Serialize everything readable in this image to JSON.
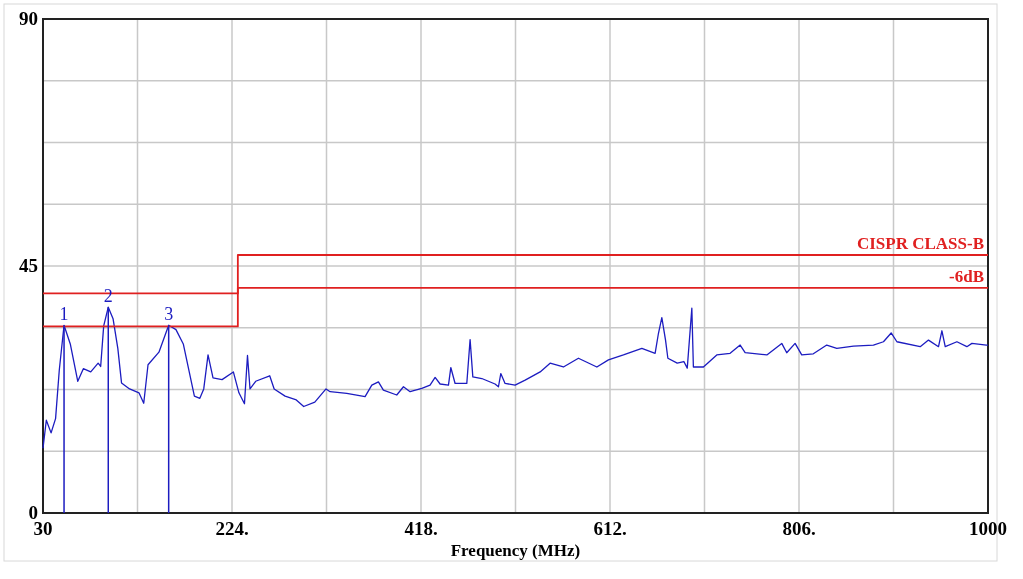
{
  "chart_data": {
    "type": "line",
    "xlabel": "Frequency (MHz)",
    "xlim": [
      30,
      1000
    ],
    "ylim": [
      0,
      90
    ],
    "xticks": [
      30,
      {
        "value": 127,
        "label": null
      },
      {
        "value": 224,
        "label": "224."
      },
      {
        "value": 321,
        "label": null
      },
      {
        "value": 418,
        "label": "418."
      },
      {
        "value": 515,
        "label": null
      },
      {
        "value": 612,
        "label": "612."
      },
      {
        "value": 709,
        "label": null
      },
      {
        "value": 806,
        "label": "806."
      },
      {
        "value": 903,
        "label": null
      },
      1000
    ],
    "yticks": [
      0,
      {
        "value": 11.25,
        "label": null
      },
      {
        "value": 22.5,
        "label": null
      },
      {
        "value": 33.75,
        "label": null
      },
      45,
      {
        "value": 56.25,
        "label": null
      },
      {
        "value": 67.5,
        "label": null
      },
      {
        "value": 78.75,
        "label": null
      },
      90
    ],
    "grid": true,
    "series": [
      {
        "color": "#1c1cc0",
        "x": [
          30,
          33.4,
          38.3,
          42.9,
          46.7,
          51.6,
          58,
          65.7,
          71.4,
          79,
          86.6,
          89.2,
          92.3,
          97,
          101.9,
          106.8,
          110.6,
          118.9,
          128.5,
          133.4,
          137.8,
          149,
          159,
          166.5,
          174,
          185.4,
          191,
          195,
          199.4,
          204.5,
          213.8,
          225.4,
          231.1,
          236.8,
          239.9,
          242.5,
          248.3,
          262.7,
          267.3,
          278.5,
          290,
          297.6,
          309,
          320.5,
          324.7,
          341.8,
          360.6,
          367.5,
          374.3,
          379.4,
          393.1,
          400,
          406.8,
          418.8,
          427.3,
          432.5,
          437.6,
          446.2,
          448.6,
          453,
          465,
          468.4,
          471.2,
          480.4,
          494,
          497.5,
          499.9,
          504.3,
          514.6,
          524.9,
          540.3,
          550.5,
          564.2,
          579.6,
          598.5,
          610.4,
          625.8,
          644.7,
          658.3,
          661.7,
          665.2,
          669,
          671.4,
          681,
          687.8,
          691.3,
          696,
          697.6,
          707.9,
          721.6,
          735.3,
          745.6,
          750.7,
          773,
          788.3,
          793.4,
          802,
          808.8,
          820.7,
          834.5,
          844.8,
          861.9,
          882.4,
          892.7,
          900.6,
          906.5,
          930.4,
          938.9,
          949.2,
          952.7,
          956.1,
          968.1,
          978.3,
          983.5,
          998.3,
          1000
        ],
        "values": [
          11.8,
          16.9,
          14.6,
          17.2,
          26,
          34.2,
          30.8,
          24,
          26.3,
          25.7,
          27.3,
          26.7,
          34.1,
          37.5,
          35.4,
          30,
          23.7,
          22.6,
          21.9,
          20,
          27,
          29.3,
          34.2,
          33.4,
          30.8,
          21.3,
          20.9,
          22.6,
          28.8,
          24.6,
          24.3,
          25.7,
          21.9,
          19.9,
          28.7,
          22.6,
          24,
          25,
          22.6,
          21.3,
          20.6,
          19.4,
          20.2,
          22.6,
          22.1,
          21.8,
          21.2,
          23.3,
          23.9,
          22.4,
          21.5,
          23,
          22.1,
          22.7,
          23.3,
          24.7,
          23.5,
          23.3,
          26.5,
          23.6,
          23.6,
          31.6,
          24.8,
          24.5,
          23.5,
          23,
          25.4,
          23.6,
          23.3,
          24.2,
          25.7,
          27.3,
          26.6,
          28.2,
          26.6,
          27.9,
          28.8,
          30,
          29.1,
          32.7,
          35.6,
          31.5,
          28.2,
          27.3,
          27.6,
          26.4,
          37.3,
          26.6,
          26.6,
          28.8,
          29.1,
          30.6,
          29.2,
          28.8,
          30.9,
          29.2,
          30.9,
          28.8,
          29,
          30.6,
          30,
          30.4,
          30.6,
          31.2,
          32.8,
          31.2,
          30.3,
          31.5,
          30.3,
          33.2,
          30.3,
          31.2,
          30.3,
          30.9,
          30.6,
          30.6
        ]
      },
      {
        "name": "CISPR CLASS-B",
        "color": "#e02020",
        "x": [
          30,
          230,
          230,
          1000
        ],
        "values": [
          40,
          40,
          47,
          47
        ]
      },
      {
        "name": "-6dB",
        "color": "#e02020",
        "x": [
          30,
          230,
          230,
          1000
        ],
        "values": [
          34,
          34,
          41,
          41
        ]
      }
    ],
    "annotations": [
      {
        "text": "1",
        "x": 51.6,
        "y": 34.2
      },
      {
        "text": "2",
        "x": 97,
        "y": 37.5
      },
      {
        "text": "3",
        "x": 159,
        "y": 34.2
      }
    ]
  }
}
